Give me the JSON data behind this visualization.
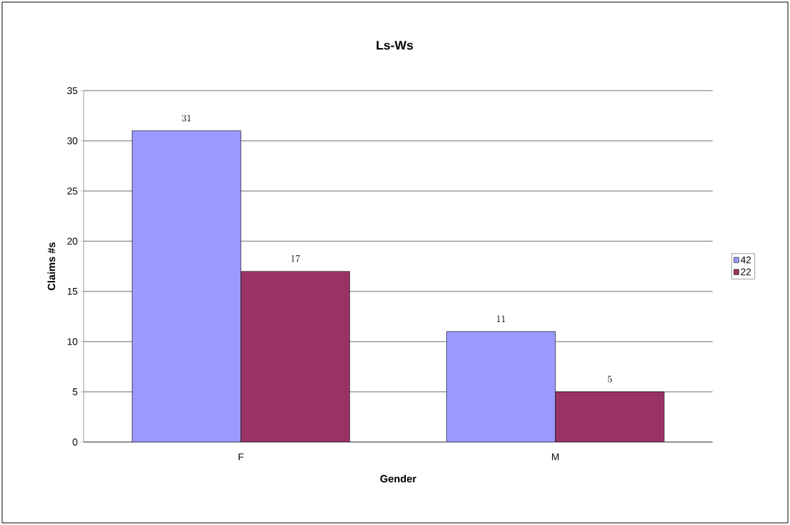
{
  "chart_data": {
    "type": "bar",
    "title": "Ls-Ws",
    "xlabel": "Gender",
    "ylabel": "Claims #s",
    "categories": [
      "F",
      "M"
    ],
    "series": [
      {
        "name": "42",
        "color": "#9999ff",
        "values": [
          31,
          11
        ]
      },
      {
        "name": "22",
        "color": "#993366",
        "values": [
          17,
          5
        ]
      }
    ],
    "ylim": [
      0,
      35
    ],
    "yticks": [
      0,
      5,
      10,
      15,
      20,
      25,
      30,
      35
    ],
    "grid": "y",
    "legend": "right",
    "data_labels": true
  }
}
